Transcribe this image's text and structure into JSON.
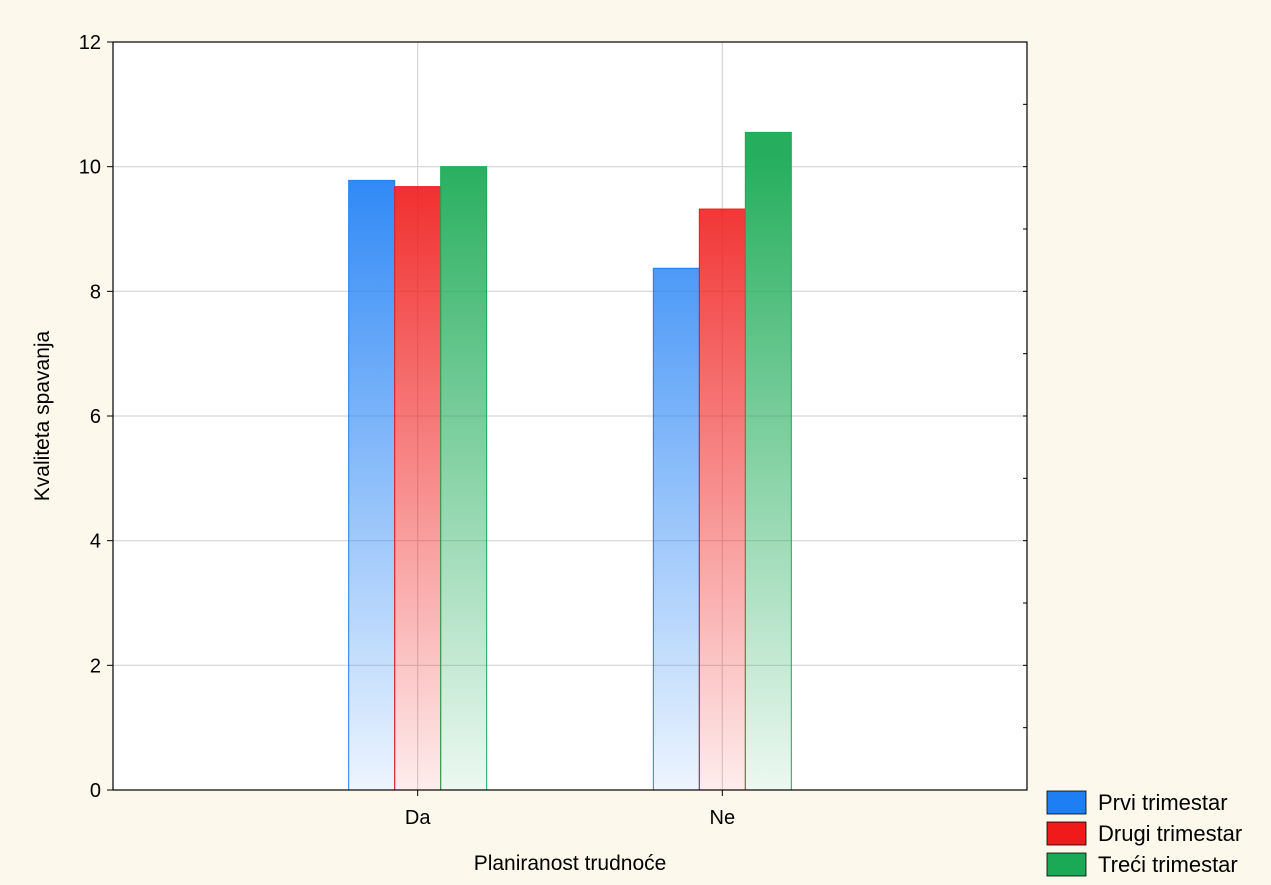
{
  "chart_data": {
    "type": "bar",
    "title": "",
    "xlabel": "Planiranost trudnoće",
    "ylabel": "Kvaliteta spavanja",
    "categories": [
      "Da",
      "Ne"
    ],
    "ylim": [
      0,
      12
    ],
    "yticks": [
      0,
      2,
      4,
      6,
      8,
      10,
      12
    ],
    "grid": true,
    "legend_position": "bottom-right",
    "series": [
      {
        "name": "Prvi trimestar",
        "values": [
          9.78,
          8.37
        ],
        "color": "#1e7ff5"
      },
      {
        "name": "Drugi trimestar",
        "values": [
          9.68,
          9.32
        ],
        "color": "#f01a1a"
      },
      {
        "name": "Treći trimestar",
        "values": [
          10.0,
          10.55
        ],
        "color": "#1aaa55"
      }
    ]
  }
}
